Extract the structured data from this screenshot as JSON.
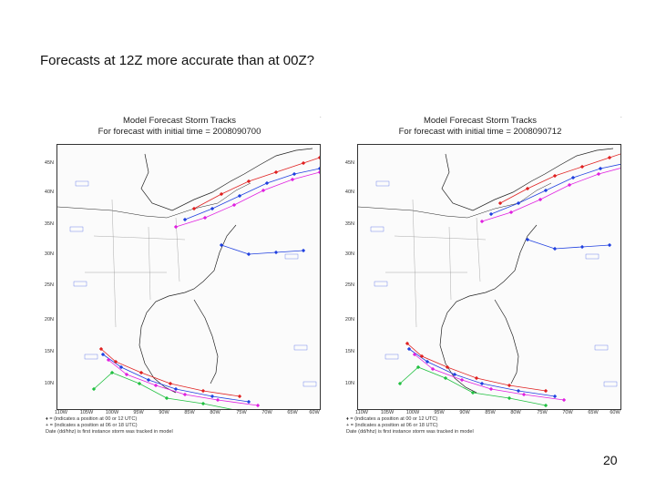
{
  "slide": {
    "title": "Forecasts at 12Z more accurate than at 00Z?",
    "page_number": "20"
  },
  "panels": [
    {
      "title_line1": "Model Forecast Storm Tracks",
      "title_line2": "For forecast with initial time = 2008090700",
      "lat_labels": [
        "45N",
        "40N",
        "35N",
        "30N",
        "25N",
        "20N",
        "15N",
        "10N"
      ],
      "lon_labels": [
        "110W",
        "105W",
        "100W",
        "95W",
        "90W",
        "85W",
        "80W",
        "75W",
        "70W",
        "65W",
        "60W"
      ],
      "legend": [
        "♦ = (indicates a position at 00 or 12 UTC)",
        "+ = (indicates a position at 06 or 18 UTC)",
        "Date (dd/hhz) is first instance storm was tracked in model"
      ]
    },
    {
      "title_line1": "Model Forecast Storm Tracks",
      "title_line2": "For forecast with initial time = 2008090712",
      "lat_labels": [
        "45N",
        "40N",
        "35N",
        "30N",
        "25N",
        "20N",
        "15N",
        "10N"
      ],
      "lon_labels": [
        "110W",
        "105W",
        "100W",
        "95W",
        "90W",
        "85W",
        "80W",
        "75W",
        "70W",
        "65W",
        "60W"
      ],
      "legend": [
        "♦ = (indicates a position at 00 or 12 UTC)",
        "+ = (indicates a position at 06 or 18 UTC)",
        "Date (dd/hhz) is first instance storm was tracked in model"
      ]
    }
  ],
  "colors": {
    "track_red": "#e02020",
    "track_blue": "#2040e0",
    "track_magenta": "#e020e0",
    "track_green": "#20c040",
    "map_line": "#222222"
  }
}
